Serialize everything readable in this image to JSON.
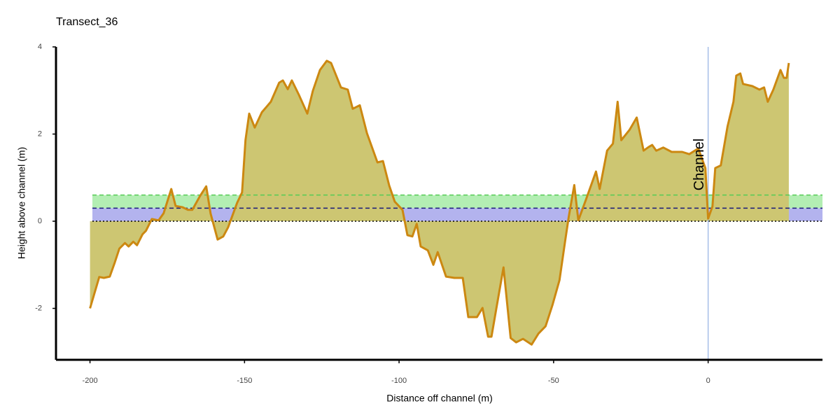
{
  "chart_data": {
    "type": "area",
    "title": "Transect_36",
    "x_label": "Distance off channel (m)",
    "y_label": "Height above channel (m)",
    "xlim": [
      -211,
      37
    ],
    "ylim": [
      -3.18,
      4
    ],
    "xticks": [
      -200,
      -150,
      -100,
      -50,
      0
    ],
    "yticks": [
      -2,
      0,
      2,
      4
    ],
    "line_color": "#cc8811",
    "fill_color": "#cdc672",
    "bands": [
      {
        "from": 0,
        "to": 0.3,
        "color": "#b3b3ee"
      },
      {
        "from": 0.3,
        "to": 0.6,
        "color": "#b3eeb3"
      }
    ],
    "hlines": [
      {
        "value": 0.6,
        "color": "#55cc55",
        "style": "dashed"
      },
      {
        "value": 0.3,
        "color": "#1a1a7a",
        "style": "dashed"
      },
      {
        "value": 0,
        "color": "#000000",
        "style": "dotted"
      }
    ],
    "vline": {
      "value": 0,
      "label": "Channel",
      "color": "#a6bde8",
      "label_color": "#4a70d0"
    },
    "x": [
      -200,
      -197,
      -195.5,
      -193.6,
      -192,
      -190.5,
      -188.7,
      -187.5,
      -186,
      -184.8,
      -183,
      -181.9,
      -180,
      -177.8,
      -176.2,
      -173.7,
      -172.3,
      -170,
      -168.3,
      -166.9,
      -164.4,
      -162.4,
      -161,
      -158.7,
      -156.9,
      -155.3,
      -152.4,
      -150.8,
      -149.7,
      -148.5,
      -146.7,
      -144.4,
      -141.5,
      -138.8,
      -137.6,
      -136,
      -134.7,
      -132.4,
      -129.7,
      -127.9,
      -125.6,
      -123.4,
      -122,
      -118.8,
      -116.6,
      -115,
      -112.7,
      -110.4,
      -107,
      -105.2,
      -103.2,
      -101.4,
      -98.9,
      -97.3,
      -95.7,
      -94.3,
      -93,
      -90.7,
      -88.9,
      -87.5,
      -84.8,
      -82.1,
      -79.4,
      -77.6,
      -74.8,
      -73,
      -71.2,
      -70.1,
      -68.5,
      -66.2,
      -63.9,
      -62.1,
      -59.9,
      -57.1,
      -54.9,
      -52.6,
      -50.3,
      -48.1,
      -46.3,
      -45.1,
      -43.3,
      -42,
      -39.5,
      -36.3,
      -35.1,
      -32.7,
      -30.8,
      -29.3,
      -28.1,
      -25.4,
      -23.1,
      -20.9,
      -19.3,
      -18.1,
      -16.8,
      -14.5,
      -11.8,
      -8.4,
      -6.1,
      -3.2,
      -0.9,
      0,
      1.4,
      2.3,
      4.1,
      6.3,
      8.2,
      9.1,
      10.4,
      11.3,
      14.3,
      16.6,
      18.1,
      19.3,
      21.1,
      23.4,
      24.5,
      25.4,
      26.1
    ],
    "values": [
      -2.0,
      -1.28,
      -1.3,
      -1.27,
      -0.95,
      -0.63,
      -0.5,
      -0.58,
      -0.47,
      -0.55,
      -0.3,
      -0.22,
      0.05,
      0.02,
      0.18,
      0.74,
      0.35,
      0.32,
      0.26,
      0.26,
      0.58,
      0.8,
      0.18,
      -0.42,
      -0.35,
      -0.14,
      0.42,
      0.66,
      1.86,
      2.47,
      2.15,
      2.5,
      2.74,
      3.18,
      3.23,
      3.03,
      3.23,
      2.9,
      2.47,
      2.99,
      3.47,
      3.68,
      3.63,
      3.07,
      3.02,
      2.58,
      2.66,
      2.02,
      1.35,
      1.38,
      0.82,
      0.45,
      0.26,
      -0.32,
      -0.35,
      -0.06,
      -0.58,
      -0.67,
      -1.0,
      -0.71,
      -1.27,
      -1.3,
      -1.3,
      -2.2,
      -2.2,
      -1.99,
      -2.65,
      -2.65,
      -1.99,
      -1.06,
      -2.68,
      -2.78,
      -2.7,
      -2.83,
      -2.58,
      -2.41,
      -1.91,
      -1.35,
      -0.47,
      0.1,
      0.83,
      0.02,
      0.5,
      1.14,
      0.74,
      1.62,
      1.78,
      2.74,
      1.86,
      2.1,
      2.38,
      1.62,
      1.7,
      1.75,
      1.62,
      1.69,
      1.59,
      1.59,
      1.54,
      1.67,
      1.22,
      0.06,
      0.34,
      1.22,
      1.28,
      2.18,
      2.74,
      3.34,
      3.39,
      3.15,
      3.1,
      3.02,
      3.07,
      2.74,
      3.02,
      3.47,
      3.29,
      3.29,
      3.63
    ]
  }
}
